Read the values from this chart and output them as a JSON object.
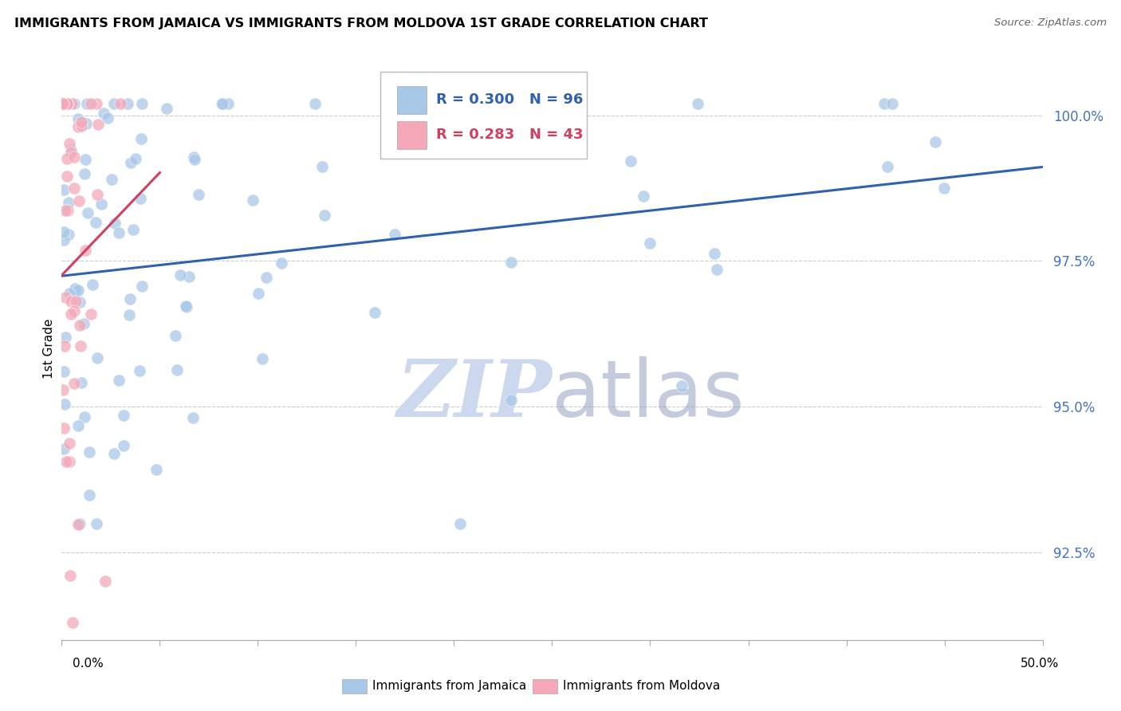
{
  "title": "IMMIGRANTS FROM JAMAICA VS IMMIGRANTS FROM MOLDOVA 1ST GRADE CORRELATION CHART",
  "source": "Source: ZipAtlas.com",
  "ylabel": "1st Grade",
  "xlim": [
    0.0,
    50.0
  ],
  "ylim": [
    91.0,
    101.0
  ],
  "ytick_vals": [
    92.5,
    95.0,
    97.5,
    100.0
  ],
  "ytick_labels": [
    "92.5%",
    "95.0%",
    "97.5%",
    "100.0%"
  ],
  "jamaica_R": 0.3,
  "jamaica_N": 96,
  "moldova_R": 0.283,
  "moldova_N": 43,
  "jamaica_color": "#a8c8e8",
  "moldova_color": "#f4a8b8",
  "trendline_jamaica_color": "#3060b0",
  "trendline_moldova_color": "#d04060",
  "watermark": "ZIPatlas",
  "watermark_color": "#ccd8ee",
  "legend_label_jamaica": "Immigrants from Jamaica",
  "legend_label_moldova": "Immigrants from Moldova",
  "legend_text_color": "#3060b0",
  "legend_R_color": "#3060b0",
  "legend_R2_color": "#d04060"
}
